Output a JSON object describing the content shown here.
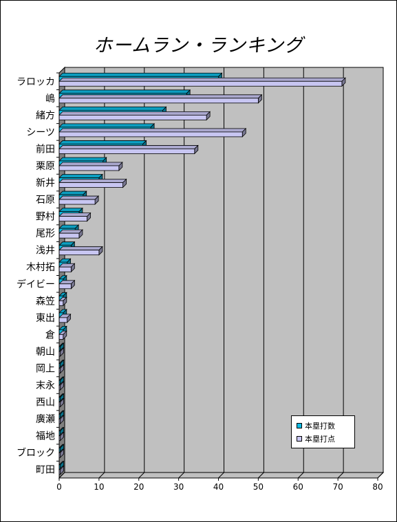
{
  "chart_data": {
    "type": "bar",
    "orientation": "horizontal",
    "style": "3d-clustered",
    "title": "ホームラン・ランキング",
    "categories": [
      "ラロッカ",
      "嶋",
      "緒方",
      "シーツ",
      "前田",
      "栗原",
      "新井",
      "石原",
      "野村",
      "尾形",
      "浅井",
      "木村拓",
      "デイビー",
      "森笠",
      "東出",
      "倉",
      "朝山",
      "岡上",
      "末永",
      "西山",
      "廣瀬",
      "福地",
      "ブロック",
      "町田"
    ],
    "series": [
      {
        "name": "本塁打数",
        "color": "#0fbae2",
        "values": [
          40,
          32,
          26,
          23,
          21,
          11,
          10,
          6,
          5,
          4,
          3,
          2,
          1,
          1,
          1,
          1,
          0,
          0,
          0,
          0,
          0,
          0,
          0,
          0
        ]
      },
      {
        "name": "本塁打点",
        "color": "#c8c6f2",
        "values": [
          71,
          50,
          37,
          46,
          34,
          15,
          16,
          9,
          7,
          5,
          10,
          3,
          3,
          1,
          2,
          1,
          0,
          0,
          0,
          0,
          0,
          0,
          0,
          0
        ]
      }
    ],
    "xlim": [
      0,
      80
    ],
    "xticks": [
      "0",
      "10",
      "20",
      "30",
      "40",
      "50",
      "60",
      "70",
      "80"
    ],
    "grid": true,
    "legend_position": "bottom-right",
    "wall_color": "#c0c0c0",
    "floor_color": "#808080"
  }
}
